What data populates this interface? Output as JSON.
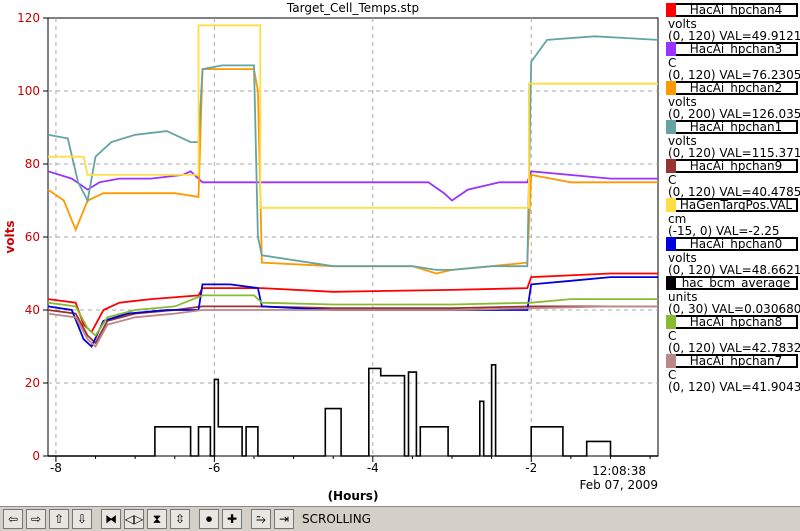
{
  "chart_data": {
    "type": "line",
    "title": "Target_Cell_Temps.stp",
    "xlabel": "(Hours)",
    "ylabel": "volts",
    "xlim": [
      -8.1,
      -0.4
    ],
    "ylim": [
      0,
      120
    ],
    "x_ticks": [
      "-8",
      "-6",
      "-4",
      "-2"
    ],
    "y_ticks": [
      "0",
      "20",
      "40",
      "60",
      "80",
      "100",
      "120"
    ],
    "grid": true,
    "timestamp": {
      "time": "12:08:38",
      "date": "Feb 07, 2009"
    },
    "series": [
      {
        "name": "HacAi_hpchan4",
        "color": "#ff0000",
        "points": [
          [
            -8.1,
            43
          ],
          [
            -7.75,
            42
          ],
          [
            -7.65,
            36
          ],
          [
            -7.55,
            34
          ],
          [
            -7.4,
            40
          ],
          [
            -7.2,
            42
          ],
          [
            -6.8,
            43
          ],
          [
            -6.2,
            44
          ],
          [
            -6.15,
            46
          ],
          [
            -5.5,
            46
          ],
          [
            -5.4,
            46
          ],
          [
            -4.5,
            45
          ],
          [
            -3,
            45.5
          ],
          [
            -2.05,
            46
          ],
          [
            -2,
            49
          ],
          [
            -1,
            50
          ],
          [
            -0.4,
            50
          ]
        ]
      },
      {
        "name": "HacAi_hpchan3",
        "color": "#9933ff",
        "points": [
          [
            -8.1,
            78
          ],
          [
            -7.8,
            76
          ],
          [
            -7.6,
            73
          ],
          [
            -7.45,
            75
          ],
          [
            -7.2,
            76
          ],
          [
            -6.8,
            76
          ],
          [
            -6.4,
            77
          ],
          [
            -6.3,
            78
          ],
          [
            -6.15,
            75
          ],
          [
            -5.5,
            75
          ],
          [
            -4.5,
            75
          ],
          [
            -3.3,
            75
          ],
          [
            -3.1,
            72
          ],
          [
            -3,
            70
          ],
          [
            -2.8,
            73
          ],
          [
            -2.4,
            75
          ],
          [
            -2.05,
            75
          ],
          [
            -2,
            78
          ],
          [
            -1,
            76
          ],
          [
            -0.4,
            76
          ]
        ]
      },
      {
        "name": "HacAi_hpchan2",
        "color": "#ff9900",
        "points": [
          [
            -8.1,
            73
          ],
          [
            -7.9,
            70
          ],
          [
            -7.75,
            62
          ],
          [
            -7.6,
            70
          ],
          [
            -7.4,
            72
          ],
          [
            -7.0,
            72
          ],
          [
            -6.5,
            72
          ],
          [
            -6.2,
            71
          ],
          [
            -6.15,
            106
          ],
          [
            -5.5,
            106
          ],
          [
            -5.45,
            100
          ],
          [
            -5.4,
            53
          ],
          [
            -4.5,
            52
          ],
          [
            -3.5,
            52
          ],
          [
            -3.2,
            50
          ],
          [
            -3.0,
            51
          ],
          [
            -2.5,
            52
          ],
          [
            -2.05,
            53
          ],
          [
            -2,
            77
          ],
          [
            -1.5,
            75
          ],
          [
            -1,
            75
          ],
          [
            -0.4,
            75
          ]
        ]
      },
      {
        "name": "HacAi_hpchan1",
        "color": "#66a3a3",
        "points": [
          [
            -8.1,
            88
          ],
          [
            -7.85,
            87
          ],
          [
            -7.72,
            75
          ],
          [
            -7.6,
            70
          ],
          [
            -7.5,
            82
          ],
          [
            -7.3,
            86
          ],
          [
            -7.0,
            88
          ],
          [
            -6.6,
            89
          ],
          [
            -6.3,
            86
          ],
          [
            -6.2,
            86
          ],
          [
            -6.15,
            106
          ],
          [
            -5.9,
            107
          ],
          [
            -5.5,
            107
          ],
          [
            -5.45,
            60
          ],
          [
            -5.4,
            55
          ],
          [
            -4.5,
            52
          ],
          [
            -3.5,
            52
          ],
          [
            -3.2,
            51
          ],
          [
            -3.0,
            51
          ],
          [
            -2.5,
            52
          ],
          [
            -2.05,
            52
          ],
          [
            -2,
            108
          ],
          [
            -1.8,
            114
          ],
          [
            -1.2,
            115
          ],
          [
            -0.4,
            114
          ]
        ]
      },
      {
        "name": "HacAi_hpchan9",
        "color": "#993333",
        "points": [
          [
            -8.1,
            40
          ],
          [
            -7.75,
            39
          ],
          [
            -7.6,
            33
          ],
          [
            -7.5,
            31
          ],
          [
            -7.35,
            37
          ],
          [
            -7.0,
            39
          ],
          [
            -6.5,
            40
          ],
          [
            -6.15,
            41
          ],
          [
            -5.5,
            41
          ],
          [
            -4.5,
            40.5
          ],
          [
            -3,
            40.5
          ],
          [
            -2,
            41
          ],
          [
            -1,
            41
          ],
          [
            -0.4,
            41
          ]
        ]
      },
      {
        "name": "HaGenTargPos.VAL",
        "color": "#ffdd44",
        "points": [
          [
            -8.1,
            82
          ],
          [
            -7.65,
            82
          ],
          [
            -7.6,
            77
          ],
          [
            -6.2,
            77
          ],
          [
            -6.2,
            118
          ],
          [
            -5.42,
            118
          ],
          [
            -5.42,
            68
          ],
          [
            -2.03,
            68
          ],
          [
            -2.03,
            102
          ],
          [
            -0.4,
            102
          ]
        ]
      },
      {
        "name": "HacAi_hpchan0",
        "color": "#0000dd",
        "points": [
          [
            -8.1,
            41
          ],
          [
            -7.8,
            40
          ],
          [
            -7.65,
            32
          ],
          [
            -7.55,
            30
          ],
          [
            -7.4,
            37
          ],
          [
            -7.1,
            39
          ],
          [
            -6.6,
            40
          ],
          [
            -6.2,
            40
          ],
          [
            -6.15,
            47
          ],
          [
            -5.8,
            47
          ],
          [
            -5.45,
            46
          ],
          [
            -5.4,
            41
          ],
          [
            -4.5,
            40
          ],
          [
            -3,
            40
          ],
          [
            -2.05,
            40
          ],
          [
            -2,
            47
          ],
          [
            -1.5,
            48
          ],
          [
            -1,
            49
          ],
          [
            -0.4,
            49
          ]
        ]
      },
      {
        "name": "hac_bcm_average",
        "color": "#000000",
        "points": [
          [
            -8.1,
            0
          ],
          [
            -6.75,
            0
          ],
          [
            -6.75,
            8
          ],
          [
            -6.3,
            8
          ],
          [
            -6.3,
            0
          ],
          [
            -6.2,
            0
          ],
          [
            -6.2,
            8
          ],
          [
            -6.05,
            8
          ],
          [
            -6.05,
            0
          ],
          [
            -6.0,
            0
          ],
          [
            -6.0,
            21
          ],
          [
            -5.95,
            21
          ],
          [
            -5.95,
            8
          ],
          [
            -5.65,
            8
          ],
          [
            -5.65,
            0
          ],
          [
            -5.6,
            0
          ],
          [
            -5.6,
            8
          ],
          [
            -5.45,
            8
          ],
          [
            -5.45,
            0
          ],
          [
            -4.6,
            0
          ],
          [
            -4.6,
            13
          ],
          [
            -4.4,
            13
          ],
          [
            -4.4,
            0
          ],
          [
            -4.05,
            0
          ],
          [
            -4.05,
            24
          ],
          [
            -3.9,
            24
          ],
          [
            -3.9,
            22
          ],
          [
            -3.6,
            22
          ],
          [
            -3.6,
            0
          ],
          [
            -3.55,
            0
          ],
          [
            -3.55,
            23
          ],
          [
            -3.45,
            23
          ],
          [
            -3.45,
            0
          ],
          [
            -3.4,
            0
          ],
          [
            -3.4,
            8
          ],
          [
            -3.05,
            8
          ],
          [
            -3.05,
            0
          ],
          [
            -2.65,
            0
          ],
          [
            -2.65,
            15
          ],
          [
            -2.6,
            15
          ],
          [
            -2.6,
            0
          ],
          [
            -2.5,
            0
          ],
          [
            -2.5,
            25
          ],
          [
            -2.45,
            25
          ],
          [
            -2.45,
            0
          ],
          [
            -2.0,
            0
          ],
          [
            -2.0,
            8
          ],
          [
            -1.6,
            8
          ],
          [
            -1.6,
            0
          ],
          [
            -1.3,
            0
          ],
          [
            -1.3,
            4
          ],
          [
            -1.0,
            4
          ],
          [
            -1.0,
            0
          ],
          [
            -0.4,
            0
          ]
        ]
      },
      {
        "name": "HacAi_hpchan8",
        "color": "#88bb33",
        "points": [
          [
            -8.1,
            42
          ],
          [
            -7.75,
            41
          ],
          [
            -7.6,
            35
          ],
          [
            -7.5,
            33
          ],
          [
            -7.35,
            38
          ],
          [
            -7.0,
            40
          ],
          [
            -6.5,
            41
          ],
          [
            -6.15,
            44
          ],
          [
            -5.5,
            44
          ],
          [
            -5.4,
            42
          ],
          [
            -4.5,
            41.5
          ],
          [
            -3,
            41.5
          ],
          [
            -2,
            42
          ],
          [
            -1.5,
            43
          ],
          [
            -0.4,
            43
          ]
        ]
      },
      {
        "name": "HacAi_hpchan7",
        "color": "#bb8888",
        "points": [
          [
            -8.1,
            39
          ],
          [
            -7.75,
            38
          ],
          [
            -7.6,
            32
          ],
          [
            -7.5,
            30
          ],
          [
            -7.35,
            36
          ],
          [
            -7.0,
            38
          ],
          [
            -6.5,
            39
          ],
          [
            -6.15,
            40
          ],
          [
            -5.5,
            40
          ],
          [
            -4.5,
            40
          ],
          [
            -3,
            40
          ],
          [
            -2,
            40.5
          ],
          [
            -1,
            41
          ],
          [
            -0.4,
            41
          ]
        ]
      }
    ]
  },
  "legend": [
    {
      "label": "HacAi_hpchan4",
      "unit": "volts",
      "range_value": "(0, 120) VAL=49.9121",
      "color": "#ff0000"
    },
    {
      "label": "HacAi_hpchan3",
      "unit": "C",
      "range_value": "(0, 120) VAL=76.2305",
      "color": "#9933ff"
    },
    {
      "label": "HacAi_hpchan2",
      "unit": "volts",
      "range_value": "(0, 200) VAL=126.035",
      "color": "#ff9900"
    },
    {
      "label": "HacAi_hpchan1",
      "unit": "volts",
      "range_value": "(0, 120) VAL=115.371",
      "color": "#66a3a3"
    },
    {
      "label": "HacAi_hpchan9",
      "unit": "C",
      "range_value": "(0, 120) VAL=40.4785",
      "color": "#993333"
    },
    {
      "label": "HaGenTargPos.VAL",
      "unit": "cm",
      "range_value": "(-15, 0) VAL=-2.25",
      "color": "#ffdd44"
    },
    {
      "label": "HacAi_hpchan0",
      "unit": "volts",
      "range_value": "(0, 120) VAL=48.6621",
      "color": "#0000dd"
    },
    {
      "label": "hac_bcm_average",
      "unit": "units",
      "range_value": "(0, 30) VAL=0.0306802",
      "color": "#000000"
    },
    {
      "label": "HacAi_hpchan8",
      "unit": "C",
      "range_value": "(0, 120) VAL=42.7832",
      "color": "#88bb33"
    },
    {
      "label": "HacAi_hpchan7",
      "unit": "C",
      "range_value": "(0, 120) VAL=41.9043",
      "color": "#bb8888"
    }
  ],
  "toolbar": {
    "status": "SCROLLING",
    "buttons": [
      {
        "name": "scroll-left-button",
        "glyph": "⇦"
      },
      {
        "name": "scroll-right-button",
        "glyph": "⇨"
      },
      {
        "name": "scroll-up-button",
        "glyph": "⇧"
      },
      {
        "name": "scroll-down-button",
        "glyph": "⇩"
      },
      {
        "name": "zoom-in-x-button",
        "glyph": "⧓"
      },
      {
        "name": "zoom-out-x-button",
        "glyph": "◁▷"
      },
      {
        "name": "zoom-in-y-button",
        "glyph": "⧗"
      },
      {
        "name": "zoom-out-y-button",
        "glyph": "⇳"
      },
      {
        "name": "record-button",
        "glyph": "⏺"
      },
      {
        "name": "add-button",
        "glyph": "✚"
      },
      {
        "name": "autoscale-button",
        "glyph": "⥲"
      },
      {
        "name": "end-button",
        "glyph": "⇥"
      }
    ]
  }
}
